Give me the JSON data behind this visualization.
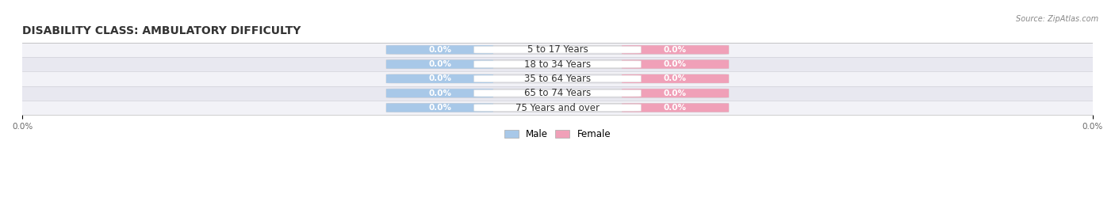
{
  "title": "DISABILITY CLASS: AMBULATORY DIFFICULTY",
  "source": "Source: ZipAtlas.com",
  "categories": [
    "5 to 17 Years",
    "18 to 34 Years",
    "35 to 64 Years",
    "65 to 74 Years",
    "75 Years and over"
  ],
  "male_values": [
    0.0,
    0.0,
    0.0,
    0.0,
    0.0
  ],
  "female_values": [
    0.0,
    0.0,
    0.0,
    0.0,
    0.0
  ],
  "male_color": "#a8c8e8",
  "female_color": "#f0a0b8",
  "row_bg_light": "#f2f2f7",
  "row_bg_dark": "#e8e8f0",
  "pill_bg_color": "#e0e0ea",
  "title_fontsize": 10,
  "label_fontsize": 8.5,
  "value_fontsize": 7.5,
  "figsize": [
    14.06,
    2.69
  ],
  "dpi": 100,
  "x_left_label": "0.0%",
  "x_right_label": "0.0%",
  "legend_male": "Male",
  "legend_female": "Female"
}
